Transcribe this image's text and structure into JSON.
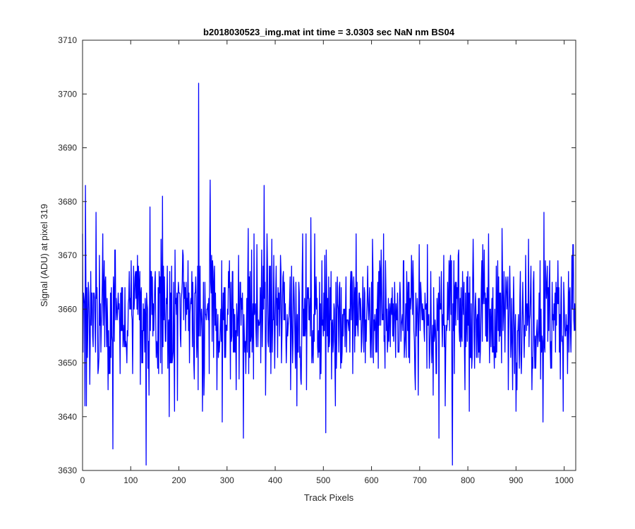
{
  "chart_data": {
    "type": "line",
    "title": "b2018030523_img.mat int time = 3.0303 sec  NaN nm BS04",
    "xlabel": "Track Pixels",
    "ylabel": "Signal (ADU) at pixel 319",
    "xlim": [
      0,
      1024
    ],
    "ylim": [
      3630,
      3710
    ],
    "xticks": [
      0,
      100,
      200,
      300,
      400,
      500,
      600,
      700,
      800,
      900,
      1000
    ],
    "yticks": [
      3630,
      3640,
      3650,
      3660,
      3670,
      3680,
      3690,
      3700,
      3710
    ],
    "grid": false,
    "line_color": "#0000ff",
    "series_mean": 3659,
    "series_length": 1024,
    "notable_points": [
      {
        "x": 1,
        "y": 3652
      },
      {
        "x": 6,
        "y": 3683
      },
      {
        "x": 8,
        "y": 3642
      },
      {
        "x": 28,
        "y": 3678
      },
      {
        "x": 63,
        "y": 3634
      },
      {
        "x": 132,
        "y": 3631
      },
      {
        "x": 140,
        "y": 3679
      },
      {
        "x": 166,
        "y": 3681
      },
      {
        "x": 180,
        "y": 3640
      },
      {
        "x": 241,
        "y": 3702
      },
      {
        "x": 265,
        "y": 3684
      },
      {
        "x": 290,
        "y": 3639
      },
      {
        "x": 334,
        "y": 3636
      },
      {
        "x": 377,
        "y": 3683
      },
      {
        "x": 505,
        "y": 3637
      },
      {
        "x": 740,
        "y": 3636
      },
      {
        "x": 768,
        "y": 3631
      },
      {
        "x": 956,
        "y": 3639
      },
      {
        "x": 958,
        "y": 3678
      },
      {
        "x": 1018,
        "y": 3672
      },
      {
        "x": 1023,
        "y": 3656
      }
    ]
  }
}
